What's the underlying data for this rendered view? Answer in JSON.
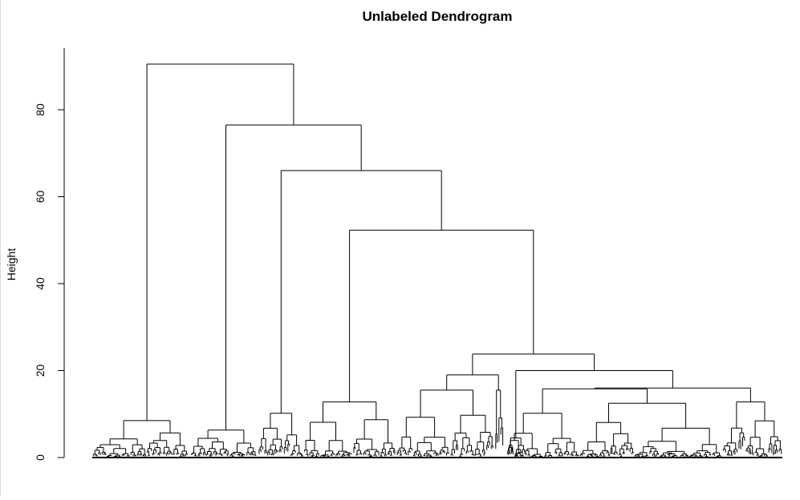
{
  "chart_data": {
    "type": "dendrogram",
    "title": "Unlabeled Dendrogram",
    "xlabel": "",
    "ylabel": "Height",
    "ylim": [
      0,
      90.5
    ],
    "yticks": [
      0,
      20,
      40,
      60,
      80
    ],
    "leaf_labels_shown": false,
    "main_merges": [
      {
        "height": 90.5,
        "description": "root merge"
      },
      {
        "height": 76.5
      },
      {
        "height": 66.0
      },
      {
        "height": 52.3
      },
      {
        "height": 23.8
      },
      {
        "height": 20.0
      },
      {
        "height": 19.0
      },
      {
        "height": 15.8
      },
      {
        "height": 15.5
      },
      {
        "height": 12.8
      },
      {
        "height": 12.5
      },
      {
        "height": 10.2
      },
      {
        "height": 10.0
      },
      {
        "height": 8.5
      }
    ],
    "line_color": "#000000"
  }
}
